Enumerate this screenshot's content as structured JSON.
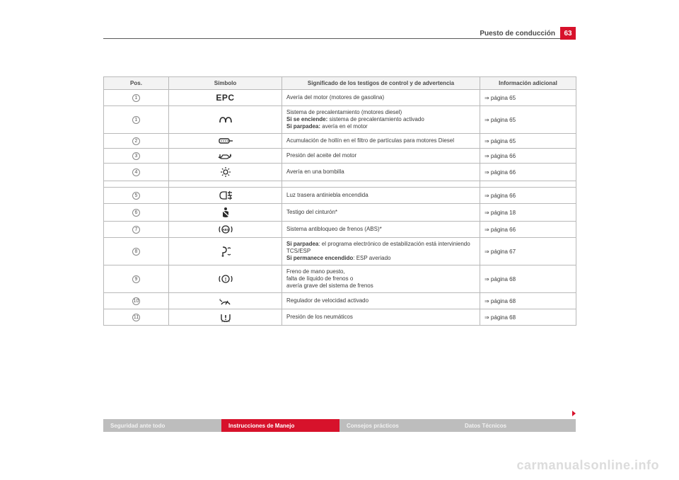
{
  "header": {
    "title": "Puesto de conducción",
    "page_number": "63"
  },
  "table": {
    "columns": [
      "Pos.",
      "Símbolo",
      "Significado de los testigos de control y de advertencia",
      "Información adicional"
    ],
    "rows": [
      {
        "pos": "1",
        "icon": "epc",
        "sig": "Avería del motor (motores de gasolina)",
        "sig_lines": [],
        "info": "⇒ página 65"
      },
      {
        "pos": "1",
        "icon": "glow",
        "sig": "",
        "sig_lines": [
          "Sistema de precalentamiento (motores diesel)",
          "<b>Si se enciende:</b> sistema de precalentamiento activado",
          "<b>Si parpadea:</b> avería en el motor"
        ],
        "info": "⇒ página 65"
      },
      {
        "pos": "2",
        "icon": "dpf",
        "sig": "Acumulación de hollín en el filtro de partículas para motores Diesel",
        "sig_lines": [],
        "info": "⇒ página 65"
      },
      {
        "pos": "3",
        "icon": "oil",
        "sig": "Presión del aceite del motor",
        "sig_lines": [],
        "info": "⇒ página 66"
      },
      {
        "pos": "4",
        "icon": "bulb",
        "sig": "Avería en una bombilla",
        "sig_lines": [],
        "info": "⇒ página 66"
      },
      {
        "pos": "",
        "icon": "",
        "sig": "",
        "sig_lines": [],
        "info": ""
      },
      {
        "pos": "5",
        "icon": "rearfog",
        "sig": "Luz trasera antiniebla encendida",
        "sig_lines": [],
        "info": "⇒ página 66"
      },
      {
        "pos": "6",
        "icon": "belt",
        "sig": "Testigo del cinturón*",
        "sig_lines": [],
        "info": "⇒ página 18"
      },
      {
        "pos": "7",
        "icon": "abs",
        "sig": "Sistema antibloqueo de frenos (ABS)*",
        "sig_lines": [],
        "info": "⇒ página 66"
      },
      {
        "pos": "8",
        "icon": "esp",
        "sig": "",
        "sig_lines": [
          "<b>Si parpadea</b>: el programa electrónico de estabilización está interviniendo TCS/ESP",
          "<b>Si permanece encendido</b>: ESP averiado"
        ],
        "info": "⇒ página 67"
      },
      {
        "pos": "9",
        "icon": "brake",
        "sig": "",
        "sig_lines": [
          "Freno de mano puesto,",
          "falta de líquido de frenos o",
          "avería grave del sistema de frenos"
        ],
        "info": "⇒ página 68"
      },
      {
        "pos": "10",
        "icon": "cruise",
        "sig": "Regulador de velocidad activado",
        "sig_lines": [],
        "info": "⇒ página 68"
      },
      {
        "pos": "11",
        "icon": "tpms",
        "sig": "Presión de los neumáticos",
        "sig_lines": [],
        "info": "⇒ página 68"
      }
    ]
  },
  "tabs": [
    {
      "label": "Seguridad ante todo",
      "style": "grey"
    },
    {
      "label": "Instrucciones de Manejo",
      "style": "red"
    },
    {
      "label": "Consejos prácticos",
      "style": "grey"
    },
    {
      "label": "Datos Técnicos",
      "style": "grey"
    }
  ],
  "watermark": "carmanualsonline.info",
  "icons_svg": {
    "glow": "<svg width='22' height='12' viewBox='0 0 22 12'><path d='M3 10 Q3 3 7 3 Q11 3 11 10 M11 10 Q11 3 15 3 Q19 3 19 10' fill='none' stroke='#2b2b2b' stroke-width='1.6'/></svg>",
    "dpf": "<svg width='24' height='12' viewBox='0 0 24 12'><rect x='3' y='3' width='14' height='6' rx='2' fill='none' stroke='#2b2b2b' stroke-width='1.4'/><circle cx='6' cy='6' r='0.8' fill='#2b2b2b'/><circle cx='9' cy='6' r='0.8' fill='#2b2b2b'/><circle cx='12' cy='6' r='0.8' fill='#2b2b2b'/><circle cx='15' cy='6' r='0.8' fill='#2b2b2b'/><line x1='17' y1='6' x2='22' y2='6' stroke='#2b2b2b' stroke-width='1.4'/></svg>",
    "oil": "<svg width='24' height='12' viewBox='0 0 24 12'><path d='M2 8 L6 8 L8 5 L14 5 L18 8 L14 10 L6 10 Z' fill='none' stroke='#2b2b2b' stroke-width='1.3'/><path d='M19 3 Q21 6 19 8 Q17 6 19 3 Z' fill='#2b2b2b'/><line x1='4' y1='4' x2='4' y2='8' stroke='#2b2b2b' stroke-width='1.3'/></svg>",
    "bulb": "<svg width='16' height='16' viewBox='0 0 16 16'><circle cx='8' cy='8' r='3' fill='none' stroke='#2b2b2b' stroke-width='1.3'/><line x1='8' y1='1' x2='8' y2='3' stroke='#2b2b2b' stroke-width='1.2'/><line x1='8' y1='13' x2='8' y2='15' stroke='#2b2b2b' stroke-width='1.2'/><line x1='1' y1='8' x2='3' y2='8' stroke='#2b2b2b' stroke-width='1.2'/><line x1='13' y1='8' x2='15' y2='8' stroke='#2b2b2b' stroke-width='1.2'/><line x1='3' y1='3' x2='4.5' y2='4.5' stroke='#2b2b2b' stroke-width='1.2'/><line x1='11.5' y1='11.5' x2='13' y2='13' stroke='#2b2b2b' stroke-width='1.2'/><line x1='3' y1='13' x2='4.5' y2='11.5' stroke='#2b2b2b' stroke-width='1.2'/><line x1='11.5' y1='4.5' x2='13' y2='3' stroke='#2b2b2b' stroke-width='1.2'/></svg>",
    "rearfog": "<svg width='22' height='14' viewBox='0 0 22 14'><path d='M8 2 Q3 2 3 7 Q3 12 8 12 L12 12 L12 2 Z' fill='none' stroke='#2b2b2b' stroke-width='1.3'/><line x1='14' y1='3' x2='20' y2='3' stroke='#2b2b2b' stroke-width='1.3'/><line x1='14' y1='7' x2='20' y2='7' stroke='#2b2b2b' stroke-width='1.3'/><line x1='14' y1='11' x2='20' y2='11' stroke='#2b2b2b' stroke-width='1.3'/><path d='M17 1 Q15 4 17 7 Q19 10 17 13' fill='none' stroke='#2b2b2b' stroke-width='1.2'/></svg>",
    "belt": "<svg width='14' height='16' viewBox='0 0 14 16'><circle cx='7' cy='3' r='2' fill='#2b2b2b'/><path d='M3 7 Q7 5 11 7 L11 14 Q7 16 3 14 Z' fill='#2b2b2b'/><line x1='2' y1='5' x2='12' y2='14' stroke='#fff' stroke-width='1.5'/></svg>",
    "abs": "<svg width='20' height='14' viewBox='0 0 20 14'><circle cx='10' cy='7' r='5' fill='none' stroke='#2b2b2b' stroke-width='1.3'/><text x='10' y='9' font-size='4.5' font-family='Arial' font-weight='bold' fill='#2b2b2b' text-anchor='middle'>ABS</text><path d='M2 3 Q0 7 2 11' fill='none' stroke='#2b2b2b' stroke-width='1.3'/><path d='M18 3 Q20 7 18 11' fill='none' stroke='#2b2b2b' stroke-width='1.3'/></svg>",
    "esp": "<svg width='18' height='16' viewBox='0 0 18 16'><path d='M5 2 Q10 2 10 6 Q10 10 5 10 L5 14' fill='none' stroke='#2b2b2b' stroke-width='1.4'/><path d='M3 14 L7 14 L5 16 Z' fill='#2b2b2b'/><path d='M12 4 Q14 2 16 4' fill='none' stroke='#2b2b2b' stroke-width='1.2'/><path d='M12 12 Q14 14 16 12' fill='none' stroke='#2b2b2b' stroke-width='1.2'/></svg>",
    "brake": "<svg width='20' height='14' viewBox='0 0 20 14'><circle cx='10' cy='7' r='5' fill='none' stroke='#2b2b2b' stroke-width='1.3'/><text x='10' y='10' font-size='7' font-family='Arial' font-weight='bold' fill='#2b2b2b' text-anchor='middle'>!</text><path d='M2 3 Q0 7 2 11' fill='none' stroke='#2b2b2b' stroke-width='1.3'/><path d='M18 3 Q20 7 18 11' fill='none' stroke='#2b2b2b' stroke-width='1.3'/></svg>",
    "cruise": "<svg width='20' height='14' viewBox='0 0 20 14'><path d='M4 12 A7 7 0 0 1 16 12' fill='none' stroke='#2b2b2b' stroke-width='1.4'/><line x1='10' y1='12' x2='13' y2='7' stroke='#2b2b2b' stroke-width='1.4'/><line x1='2' y1='6' x2='5' y2='8' stroke='#2b2b2b' stroke-width='1.3'/><path d='M2 6 L1 5 L3 4 Z' fill='#2b2b2b'/></svg>",
    "tpms": "<svg width='20' height='14' viewBox='0 0 20 14'><path d='M4 3 L4 9 Q4 13 10 13 Q16 13 16 9 L16 3' fill='none' stroke='#2b2b2b' stroke-width='1.4'/><line x1='10' y1='4' x2='10' y2='8' stroke='#2b2b2b' stroke-width='1.6'/><circle cx='10' cy='10' r='0.9' fill='#2b2b2b'/><line x1='5' y1='13' x2='5' y2='14' stroke='#2b2b2b' stroke-width='1'/><line x1='8' y1='13' x2='8' y2='14' stroke='#2b2b2b' stroke-width='1'/><line x1='12' y1='13' x2='12' y2='14' stroke='#2b2b2b' stroke-width='1'/><line x1='15' y1='13' x2='15' y2='14' stroke='#2b2b2b' stroke-width='1'/></svg>"
  }
}
